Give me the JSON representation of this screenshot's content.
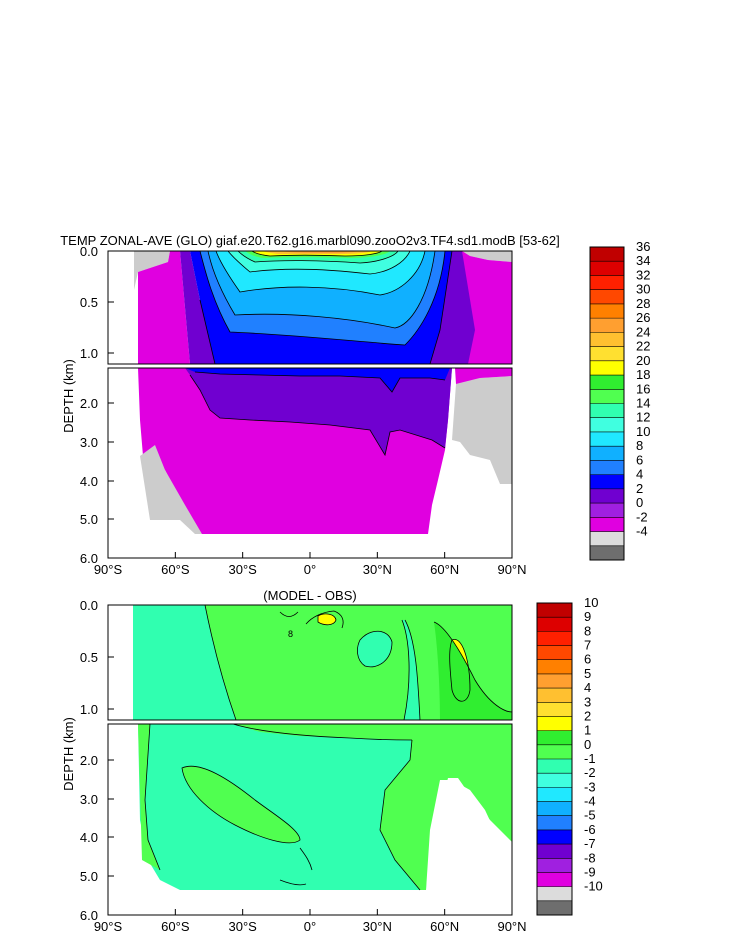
{
  "figure": {
    "title": "TEMP ZONAL-AVE (GLO) giaf.e20.T62.g16.marbl090.zooO2v3.TF4.sd1.modB [53-62]",
    "subtitle": "(MODEL - OBS)"
  },
  "chart_data": [
    {
      "type": "heatmap",
      "title": "TEMP ZONAL-AVE (GLO) giaf.e20.T62.g16.marbl090.zooO2v3.TF4.sd1.modB [53-62]",
      "xlabel": "",
      "ylabel": "DEPTH (km)",
      "x_ticks": [
        "90°S",
        "60°S",
        "30°S",
        "0°",
        "30°N",
        "60°N",
        "90°N"
      ],
      "y_ticks": [
        "0.0",
        "0.5",
        "1.0",
        "2.0",
        "3.0",
        "4.0",
        "5.0",
        "6.0"
      ],
      "xlim": [
        -90,
        90
      ],
      "ylim": [
        6.0,
        0.0
      ],
      "legend": {
        "placement": "right",
        "levels": [
          "36",
          "34",
          "32",
          "30",
          "28",
          "26",
          "24",
          "22",
          "20",
          "18",
          "16",
          "14",
          "12",
          "10",
          "8",
          "6",
          "4",
          "2",
          "0",
          "-2",
          "-4"
        ],
        "colors": [
          "#c00000",
          "#dd0000",
          "#ff2000",
          "#ff4800",
          "#ff8000",
          "#ff9f30",
          "#ffc030",
          "#ffe030",
          "#ffff00",
          "#30ee30",
          "#50ff50",
          "#30ffb0",
          "#40ffe0",
          "#20e8ff",
          "#10b0ff",
          "#2080ff",
          "#0000ff",
          "#7000d0",
          "#a020e0",
          "#e000e0",
          "#dcdcdc",
          "#6e6e6e"
        ]
      }
    },
    {
      "type": "heatmap",
      "title": "(MODEL - OBS)",
      "xlabel": "",
      "ylabel": "DEPTH (km)",
      "x_ticks": [
        "90°S",
        "60°S",
        "30°S",
        "0°",
        "30°N",
        "60°N",
        "90°N"
      ],
      "y_ticks": [
        "0.0",
        "0.5",
        "1.0",
        "2.0",
        "3.0",
        "4.0",
        "5.0",
        "6.0"
      ],
      "xlim": [
        -90,
        90
      ],
      "ylim": [
        6.0,
        0.0
      ],
      "annotation": "8",
      "legend": {
        "placement": "right",
        "levels": [
          "10",
          "9",
          "8",
          "7",
          "6",
          "5",
          "4",
          "3",
          "2",
          "1",
          "0",
          "-1",
          "-2",
          "-3",
          "-4",
          "-5",
          "-6",
          "-7",
          "-8",
          "-9",
          "-10"
        ],
        "colors": [
          "#c00000",
          "#dd0000",
          "#ff2000",
          "#ff4800",
          "#ff8000",
          "#ff9f30",
          "#ffc030",
          "#ffe030",
          "#ffff00",
          "#30ee30",
          "#50ff50",
          "#30ffb0",
          "#40ffe0",
          "#20e8ff",
          "#10b0ff",
          "#2080ff",
          "#0000ff",
          "#7000d0",
          "#a020e0",
          "#e000e0",
          "#dcdcdc",
          "#6e6e6e"
        ]
      }
    }
  ]
}
